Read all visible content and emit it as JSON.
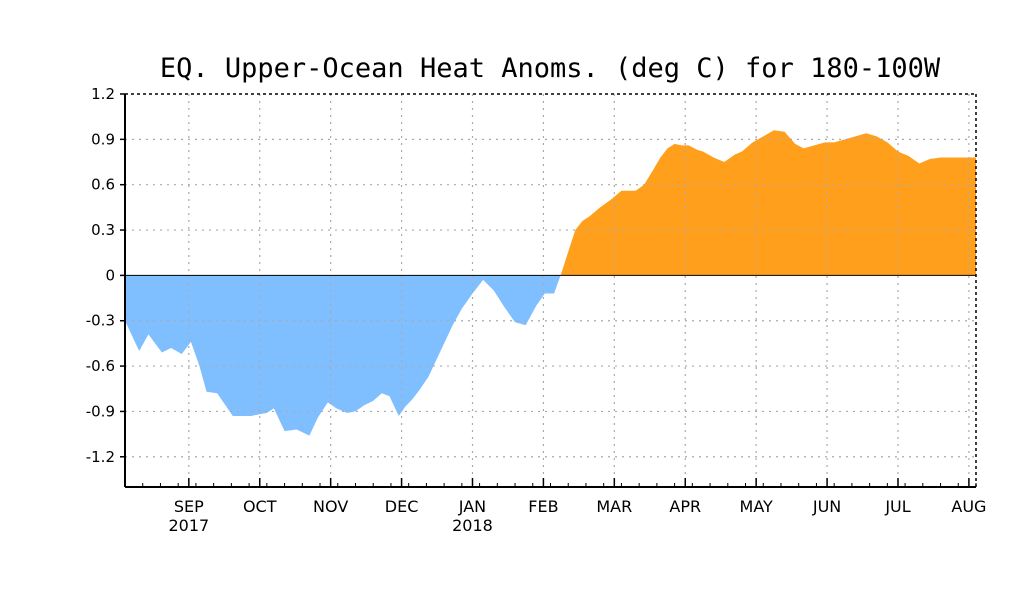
{
  "chart_data": {
    "type": "area",
    "title": "EQ. Upper-Ocean Heat Anoms. (deg C) for 180-100W",
    "xlabel": "",
    "ylabel": "",
    "ylim": [
      -1.4,
      1.2
    ],
    "yticks": [
      {
        "value": 1.2,
        "label": "1.2"
      },
      {
        "value": 0.9,
        "label": "0.9"
      },
      {
        "value": 0.6,
        "label": "0.6"
      },
      {
        "value": 0.3,
        "label": "0.3"
      },
      {
        "value": 0,
        "label": "0"
      },
      {
        "value": -0.3,
        "label": "-0.3"
      },
      {
        "value": -0.6,
        "label": "-0.6"
      },
      {
        "value": -0.9,
        "label": "-0.9"
      },
      {
        "value": -1.2,
        "label": "-1.2"
      }
    ],
    "xlim": [
      0,
      12.0
    ],
    "xticks": [
      {
        "value": 0.9,
        "label": "SEP",
        "sublabel": "2017"
      },
      {
        "value": 1.9,
        "label": "OCT"
      },
      {
        "value": 2.9,
        "label": "NOV"
      },
      {
        "value": 3.9,
        "label": "DEC"
      },
      {
        "value": 4.9,
        "label": "JAN",
        "sublabel": "2018"
      },
      {
        "value": 5.9,
        "label": "FEB"
      },
      {
        "value": 6.9,
        "label": "MAR"
      },
      {
        "value": 7.9,
        "label": "APR"
      },
      {
        "value": 8.9,
        "label": "MAY"
      },
      {
        "value": 9.9,
        "label": "JUN"
      },
      {
        "value": 10.9,
        "label": "JUL"
      },
      {
        "value": 11.9,
        "label": "AUG"
      }
    ],
    "grid": true,
    "colors": {
      "positive": "#ff9f1c",
      "negative": "#80bfff",
      "grid": "#aaaaaa",
      "axis": "#000000"
    },
    "series": [
      {
        "name": "Heat anomaly (deg C)",
        "x": [
          0.0,
          0.2,
          0.33,
          0.52,
          0.65,
          0.8,
          0.93,
          1.05,
          1.15,
          1.3,
          1.52,
          1.65,
          1.78,
          1.88,
          2.0,
          2.1,
          2.25,
          2.42,
          2.6,
          2.72,
          2.86,
          2.98,
          3.13,
          3.25,
          3.37,
          3.5,
          3.62,
          3.73,
          3.86,
          3.95,
          4.05,
          4.15,
          4.28,
          4.38,
          4.5,
          4.62,
          4.75,
          4.9,
          5.05,
          5.2,
          5.35,
          5.5,
          5.65,
          5.8,
          5.92,
          6.05,
          6.15,
          6.28,
          6.35,
          6.45,
          6.55,
          6.7,
          6.85,
          7.0,
          7.1,
          7.2,
          7.32,
          7.45,
          7.55,
          7.65,
          7.75,
          7.85,
          7.95,
          8.07,
          8.15,
          8.3,
          8.45,
          8.6,
          8.7,
          8.85,
          9.0,
          9.15,
          9.3,
          9.45,
          9.57,
          9.72,
          9.87,
          10.0,
          10.15,
          10.3,
          10.45,
          10.6,
          10.75,
          10.9,
          11.05,
          11.2,
          11.35,
          11.5,
          11.65,
          11.8,
          12.0
        ],
        "values": [
          -0.3,
          -0.5,
          -0.39,
          -0.51,
          -0.48,
          -0.52,
          -0.44,
          -0.6,
          -0.77,
          -0.78,
          -0.93,
          -0.93,
          -0.93,
          -0.92,
          -0.91,
          -0.88,
          -1.03,
          -1.02,
          -1.06,
          -0.94,
          -0.84,
          -0.88,
          -0.91,
          -0.9,
          -0.86,
          -0.83,
          -0.78,
          -0.8,
          -0.93,
          -0.87,
          -0.82,
          -0.76,
          -0.67,
          -0.57,
          -0.45,
          -0.33,
          -0.22,
          -0.12,
          -0.03,
          -0.1,
          -0.21,
          -0.31,
          -0.33,
          -0.2,
          -0.12,
          -0.12,
          0.01,
          0.2,
          0.3,
          0.36,
          0.39,
          0.45,
          0.5,
          0.56,
          0.56,
          0.56,
          0.6,
          0.7,
          0.78,
          0.84,
          0.87,
          0.86,
          0.86,
          0.83,
          0.82,
          0.78,
          0.75,
          0.8,
          0.82,
          0.88,
          0.92,
          0.96,
          0.95,
          0.87,
          0.84,
          0.86,
          0.88,
          0.88,
          0.9,
          0.92,
          0.94,
          0.92,
          0.88,
          0.82,
          0.79,
          0.74,
          0.77,
          0.78,
          0.78,
          0.78,
          0.78
        ]
      }
    ]
  }
}
